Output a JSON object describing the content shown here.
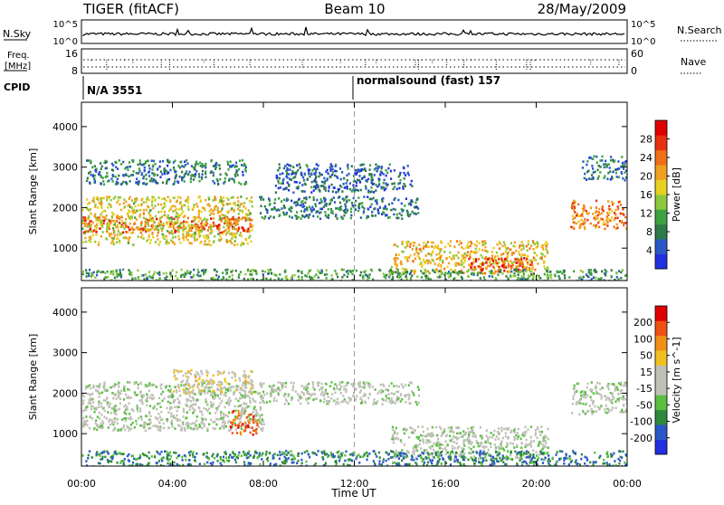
{
  "header": {
    "station": "TIGER (fitACF)",
    "beam": "Beam 10",
    "date": "28/May/2009"
  },
  "strip": {
    "nsky": {
      "label": "N.Sky",
      "ticks": [
        "10^5",
        "10^0"
      ]
    },
    "nsearch": {
      "label": "N.Search",
      "ticks": [
        "10^5",
        "10^0"
      ]
    },
    "freq": {
      "label": "Freq.",
      "unit": "[MHz]",
      "ticks": [
        "16",
        "8"
      ]
    },
    "nave": {
      "label": "Nave",
      "ticks": [
        "60",
        "0"
      ]
    },
    "cpid": {
      "label": "CPID",
      "segments": [
        "N/A 3551",
        "normalsound (fast) 157"
      ]
    }
  },
  "chart_data": [
    {
      "type": "heatmap",
      "panel": "power",
      "ylabel": "Slant Range [km]",
      "xlabel": "Time UT",
      "x_ticks": [
        "00:00",
        "04:00",
        "08:00",
        "12:00",
        "16:00",
        "20:00",
        "00:00"
      ],
      "x_range_hours": [
        0,
        24
      ],
      "y_ticks": [
        1000,
        2000,
        3000,
        4000
      ],
      "ylim": [
        200,
        4600
      ],
      "colorbar": {
        "label": "Power [dB]",
        "ticks": [
          "28",
          "24",
          "20",
          "16",
          "12",
          "8",
          "4"
        ],
        "colors": [
          "#2030e0",
          "#2a58c8",
          "#2e7a4a",
          "#3fa240",
          "#8cc83c",
          "#e8d020",
          "#f0a020",
          "#f07018",
          "#e83010",
          "#e00000"
        ]
      },
      "regions": [
        {
          "t0": 0.0,
          "t1": 7.5,
          "r0": 1400,
          "r1": 1800,
          "level": 0.85
        },
        {
          "t0": 0.0,
          "t1": 7.5,
          "r0": 1100,
          "r1": 2300,
          "level": 0.55
        },
        {
          "t0": 0.2,
          "t1": 7.2,
          "r0": 2600,
          "r1": 3200,
          "level": 0.2
        },
        {
          "t0": 7.8,
          "t1": 14.8,
          "r0": 1750,
          "r1": 2300,
          "level": 0.2
        },
        {
          "t0": 8.5,
          "t1": 14.5,
          "r0": 2400,
          "r1": 3100,
          "level": 0.15
        },
        {
          "t0": 13.6,
          "t1": 20.5,
          "r0": 400,
          "r1": 1200,
          "level": 0.6
        },
        {
          "t0": 17.0,
          "t1": 19.8,
          "r0": 450,
          "r1": 800,
          "level": 0.9
        },
        {
          "t0": 21.5,
          "t1": 24.0,
          "r0": 1500,
          "r1": 2200,
          "level": 0.75
        },
        {
          "t0": 22.0,
          "t1": 24.0,
          "r0": 2700,
          "r1": 3300,
          "level": 0.2
        },
        {
          "t0": 0.0,
          "t1": 24.0,
          "r0": 200,
          "r1": 500,
          "level": 0.3
        }
      ]
    },
    {
      "type": "heatmap",
      "panel": "velocity",
      "ylabel": "Slant Range [km]",
      "xlabel": "Time UT",
      "x_ticks": [
        "00:00",
        "04:00",
        "08:00",
        "12:00",
        "16:00",
        "20:00",
        "00:00"
      ],
      "x_range_hours": [
        0,
        24
      ],
      "y_ticks": [
        1000,
        2000,
        3000,
        4000
      ],
      "ylim": [
        200,
        4600
      ],
      "colorbar": {
        "label": "Velocity [m s^-1]",
        "ticks": [
          "200",
          "100",
          "50",
          "15",
          "-15",
          "-50",
          "-100",
          "-200"
        ],
        "colors": [
          "#2030e0",
          "#2a58c8",
          "#2e8a3a",
          "#5ac040",
          "#c0c0b8",
          "#c0c0b8",
          "#f0c020",
          "#f09018",
          "#f05010",
          "#e00000"
        ]
      },
      "regions": [
        {
          "t0": 0.0,
          "t1": 8.0,
          "r0": 1100,
          "r1": 2300,
          "level": 0.45
        },
        {
          "t0": 4.0,
          "t1": 7.5,
          "r0": 2000,
          "r1": 2600,
          "level": 0.6
        },
        {
          "t0": 6.5,
          "t1": 7.7,
          "r0": 1000,
          "r1": 1600,
          "level": 0.85
        },
        {
          "t0": 7.8,
          "t1": 14.8,
          "r0": 1750,
          "r1": 2300,
          "level": 0.45
        },
        {
          "t0": 13.6,
          "t1": 20.5,
          "r0": 400,
          "r1": 1200,
          "level": 0.45
        },
        {
          "t0": 21.5,
          "t1": 24.0,
          "r0": 1500,
          "r1": 2300,
          "level": 0.45
        },
        {
          "t0": 0.0,
          "t1": 24.0,
          "r0": 200,
          "r1": 600,
          "level": 0.2
        }
      ]
    }
  ]
}
